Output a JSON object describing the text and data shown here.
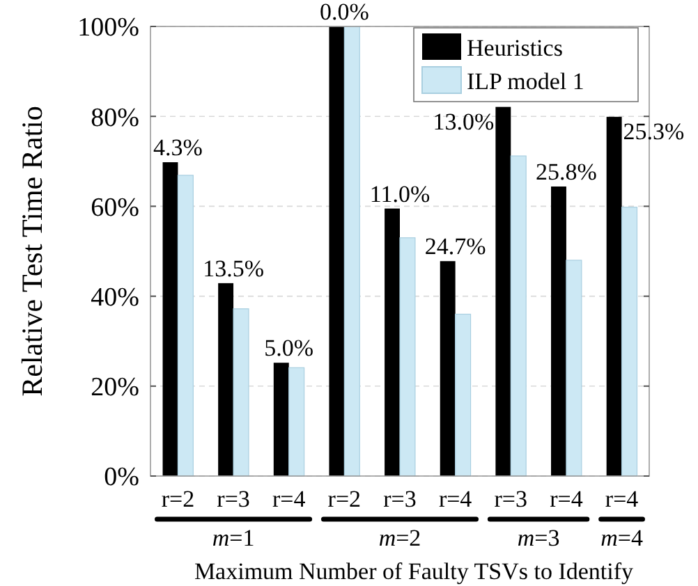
{
  "chart_data": {
    "type": "bar",
    "xlabel": "Maximum Number of Faulty TSVs to Identify",
    "ylabel": "Relative Test Time Ratio",
    "categories": [
      "r=2",
      "r=3",
      "r=4",
      "r=2",
      "r=3",
      "r=4",
      "r=3",
      "r=4",
      "r=4"
    ],
    "series": [
      {
        "name": "Heuristics",
        "color": "#000000",
        "values": [
          69.8,
          42.9,
          25.2,
          100,
          59.5,
          47.8,
          82.1,
          64.4,
          79.9
        ]
      },
      {
        "name": "ILP model 1",
        "color": "#cce8f4",
        "values": [
          66.9,
          37.2,
          24.1,
          100,
          53.0,
          36.0,
          71.2,
          48.0,
          59.8
        ]
      }
    ],
    "ylim": [
      0,
      100
    ],
    "yticks": [
      {
        "value": 0,
        "label": "0%"
      },
      {
        "value": 20,
        "label": "20%"
      },
      {
        "value": 40,
        "label": "40%"
      },
      {
        "value": 60,
        "label": "60%"
      },
      {
        "value": 80,
        "label": "80%"
      },
      {
        "value": 100,
        "label": "100%"
      }
    ],
    "grid": "y",
    "legend": "top right",
    "annotations": [
      "4.3%",
      "13.5%",
      "5.0%",
      "0.0%",
      "11.0%",
      "24.7%",
      "13.0%",
      "25.8%",
      "25.3%",
      "m=1",
      "m=2",
      "m=3",
      "m=4"
    ]
  }
}
